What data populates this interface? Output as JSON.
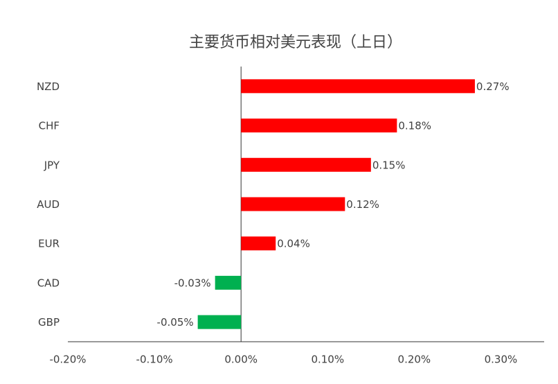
{
  "chart_data": {
    "type": "bar",
    "orientation": "horizontal",
    "title": "主要货币相对美元表现（上日）",
    "categories": [
      "NZD",
      "CHF",
      "JPY",
      "AUD",
      "EUR",
      "CAD",
      "GBP"
    ],
    "values": [
      0.27,
      0.18,
      0.15,
      0.12,
      0.04,
      -0.03,
      -0.05
    ],
    "value_labels": [
      "0.27%",
      "0.18%",
      "0.15%",
      "0.12%",
      "0.04%",
      "-0.03%",
      "-0.05%"
    ],
    "colors": [
      "#ff0000",
      "#ff0000",
      "#ff0000",
      "#ff0000",
      "#ff0000",
      "#00b050",
      "#00b050"
    ],
    "xlim": [
      -0.2,
      0.35
    ],
    "xticks": [
      {
        "value": -0.2,
        "label": "-0.20%"
      },
      {
        "value": -0.1,
        "label": "-0.10%"
      },
      {
        "value": 0,
        "label": "0.00%"
      },
      {
        "value": 0.1,
        "label": "0.10%"
      },
      {
        "value": 0.2,
        "label": "0.20%"
      },
      {
        "value": 0.3,
        "label": "0.30%"
      }
    ],
    "grid": false
  }
}
